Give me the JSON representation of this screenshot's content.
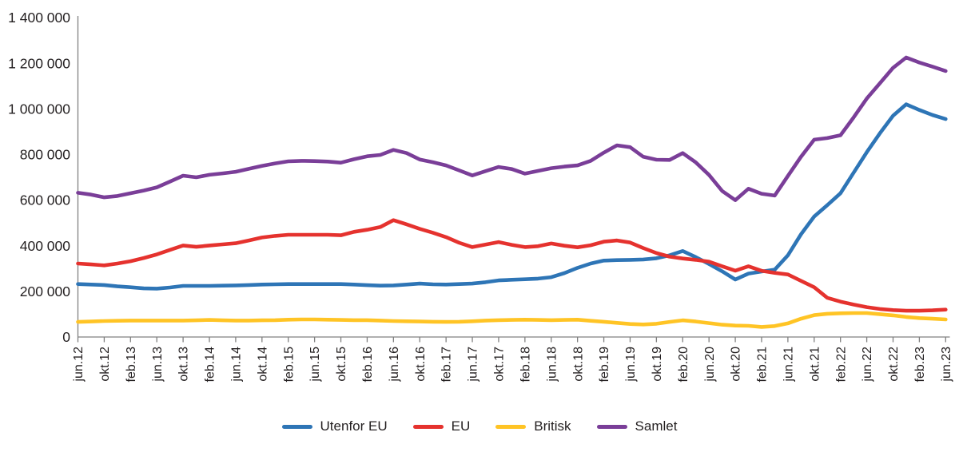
{
  "figure": {
    "background": "#ffffff",
    "axis_color": "#808080",
    "text_color": "#231f20"
  },
  "chart_data": {
    "type": "line",
    "title": "",
    "xlabel": "",
    "ylabel": "",
    "grid": false,
    "legend_position": "bottom",
    "ylim": [
      0,
      1400000
    ],
    "y_tick_step": 200000,
    "y_tick_labels": [
      "0",
      "200 000",
      "400 000",
      "600 000",
      "800 000",
      "1 000 000",
      "1 200 000",
      "1 400 000"
    ],
    "x": [
      "jun.12",
      "aug.12",
      "okt.12",
      "des.12",
      "feb.13",
      "apr.13",
      "jun.13",
      "aug.13",
      "okt.13",
      "des.13",
      "feb.14",
      "apr.14",
      "jun.14",
      "aug.14",
      "okt.14",
      "des.14",
      "feb.15",
      "apr.15",
      "jun.15",
      "aug.15",
      "okt.15",
      "des.15",
      "feb.16",
      "apr.16",
      "jun.16",
      "aug.16",
      "okt.16",
      "des.16",
      "feb.17",
      "apr.17",
      "jun.17",
      "aug.17",
      "okt.17",
      "des.17",
      "feb.18",
      "apr.18",
      "jun.18",
      "aug.18",
      "okt.18",
      "des.18",
      "feb.19",
      "apr.19",
      "jun.19",
      "aug.19",
      "okt.19",
      "des.19",
      "feb.20",
      "apr.20",
      "jun.20",
      "aug.20",
      "okt.20",
      "des.20",
      "feb.21",
      "apr.21",
      "jun.21",
      "aug.21",
      "okt.21",
      "des.21",
      "feb.22",
      "apr.22",
      "jun.22",
      "aug.22",
      "okt.22",
      "des.22",
      "feb.23",
      "apr.23",
      "jun.23"
    ],
    "x_tick_labels": [
      "jun.12",
      "okt.12",
      "feb.13",
      "jun.13",
      "okt.13",
      "feb.14",
      "jun.14",
      "okt.14",
      "feb.15",
      "jun.15",
      "okt.15",
      "feb.16",
      "jun.16",
      "okt.16",
      "feb.17",
      "jun.17",
      "okt.17",
      "feb.18",
      "jun.18",
      "okt.18",
      "feb.19",
      "jun.19",
      "okt.19",
      "feb.20",
      "jun.20",
      "okt.20",
      "feb.21",
      "jun.21",
      "okt.21",
      "feb.22",
      "jun.22",
      "okt.22",
      "feb.23",
      "jun.23"
    ],
    "series": [
      {
        "name": "Utenfor EU",
        "color": "#2E75B6",
        "values": [
          232000,
          230000,
          228000,
          222000,
          218000,
          213000,
          212000,
          217000,
          224000,
          224000,
          224000,
          225000,
          226000,
          228000,
          230000,
          231000,
          232000,
          232000,
          232000,
          232000,
          232000,
          230000,
          227000,
          225000,
          226000,
          230000,
          234000,
          231000,
          230000,
          232000,
          234000,
          240000,
          248000,
          251000,
          253000,
          256000,
          262000,
          280000,
          303000,
          322000,
          335000,
          337000,
          338000,
          340000,
          345000,
          358000,
          377000,
          350000,
          320000,
          288000,
          252000,
          278000,
          287000,
          295000,
          358000,
          450000,
          528000,
          578000,
          630000,
          720000,
          810000,
          893000,
          970000,
          1020000,
          995000,
          973000,
          955000
        ]
      },
      {
        "name": "EU",
        "color": "#E5322E",
        "values": [
          322000,
          318000,
          314000,
          322000,
          332000,
          346000,
          362000,
          382000,
          401000,
          395000,
          401000,
          406000,
          411000,
          423000,
          436000,
          443000,
          448000,
          448000,
          448000,
          448000,
          446000,
          461000,
          470000,
          482000,
          512000,
          494000,
          474000,
          457000,
          438000,
          413000,
          394000,
          405000,
          416000,
          404000,
          394000,
          398000,
          410000,
          400000,
          393000,
          402000,
          418000,
          423000,
          414000,
          390000,
          368000,
          352000,
          344000,
          338000,
          330000,
          310000,
          291000,
          310000,
          290000,
          281000,
          274000,
          246000,
          218000,
          172000,
          155000,
          142000,
          131000,
          123000,
          118000,
          115000,
          115000,
          117000,
          120000
        ]
      },
      {
        "name": "Britisk",
        "color": "#FFC425",
        "values": [
          66000,
          68000,
          70000,
          71000,
          72000,
          72000,
          72000,
          72000,
          72000,
          73000,
          75000,
          73000,
          72000,
          72000,
          73000,
          74000,
          76000,
          77000,
          77000,
          76000,
          75000,
          74000,
          74000,
          72000,
          70000,
          69000,
          68000,
          67000,
          66000,
          67000,
          69000,
          72000,
          74000,
          75000,
          76000,
          75000,
          74000,
          75000,
          76000,
          71000,
          67000,
          62000,
          57000,
          55000,
          58000,
          66000,
          73000,
          68000,
          61000,
          54000,
          50000,
          49000,
          44000,
          48000,
          60000,
          80000,
          96000,
          102000,
          104000,
          105000,
          105000,
          100000,
          95000,
          88000,
          83000,
          80000,
          77000
        ]
      },
      {
        "name": "Samlet",
        "color": "#7A3E98",
        "values": [
          632000,
          624000,
          612000,
          618000,
          630000,
          642000,
          656000,
          681000,
          707000,
          700000,
          711000,
          717000,
          724000,
          737000,
          750000,
          761000,
          770000,
          772000,
          771000,
          769000,
          764000,
          779000,
          792000,
          798000,
          820000,
          806000,
          778000,
          766000,
          752000,
          730000,
          708000,
          727000,
          745000,
          736000,
          716000,
          728000,
          740000,
          747000,
          752000,
          772000,
          808000,
          840000,
          832000,
          790000,
          777000,
          776000,
          806000,
          765000,
          710000,
          640000,
          600000,
          650000,
          628000,
          620000,
          706000,
          790000,
          865000,
          872000,
          884000,
          962000,
          1045000,
          1112000,
          1180000,
          1225000,
          1203000,
          1185000,
          1166000
        ]
      }
    ]
  }
}
